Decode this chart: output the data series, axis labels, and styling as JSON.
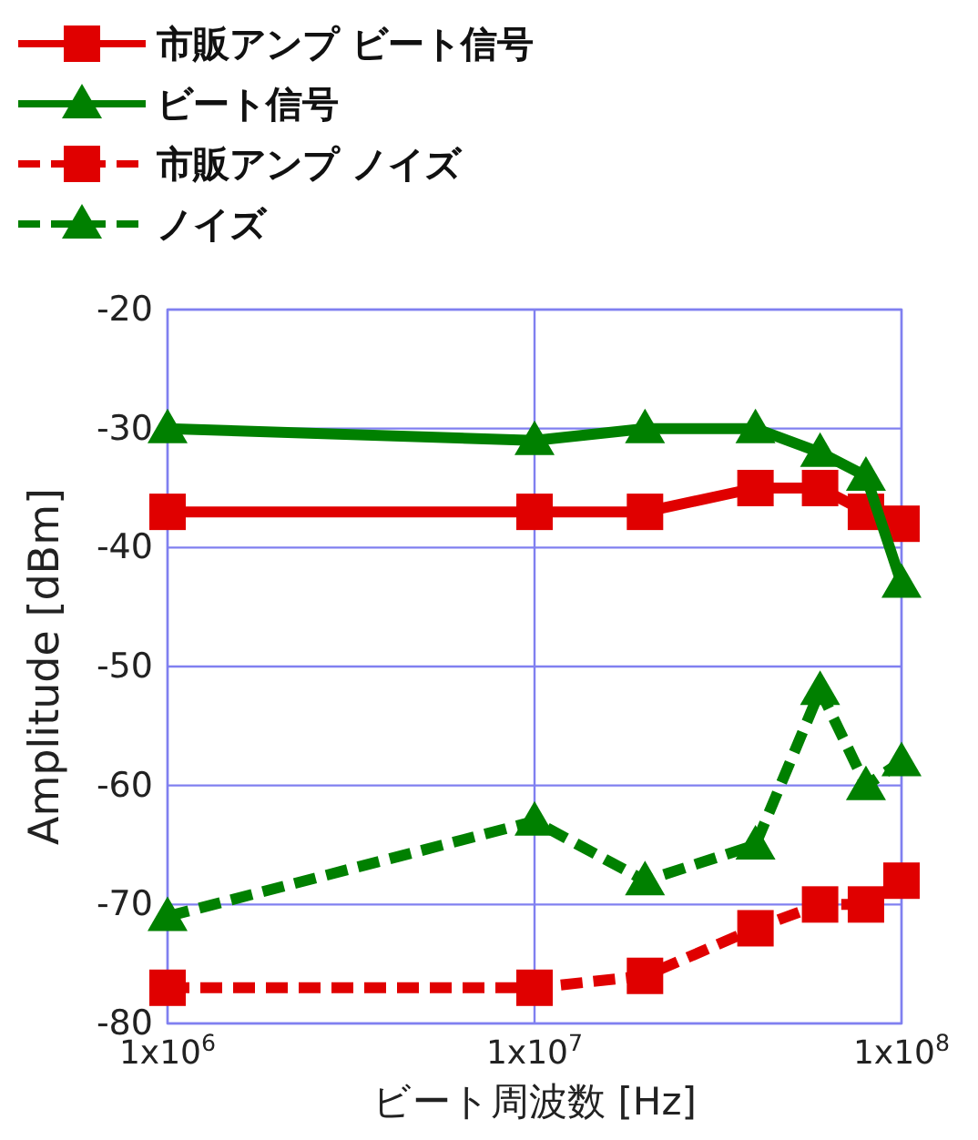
{
  "chart_data": {
    "type": "line",
    "xlabel": "ビート周波数 [Hz]",
    "ylabel": "Amplitude [dBm]",
    "log": "x",
    "grid": true,
    "legend": "top left",
    "x": [
      1000000,
      10000000,
      20000000,
      40000000,
      60000000,
      80000000,
      100000000
    ],
    "xlim": [
      1000000,
      100000000
    ],
    "xticks": [
      {
        "value": 1000000,
        "label": "1x10$^{6}$"
      },
      {
        "value": 10000000,
        "label": "1x10$^{7}$"
      },
      {
        "value": 100000000,
        "label": "1x10$^{8}$"
      }
    ],
    "ylim": [
      -80,
      -20
    ],
    "yticks": [
      -80,
      -70,
      -60,
      -50,
      -40,
      -30,
      -20
    ],
    "series": [
      {
        "name": "市販アンプ ビート信号",
        "color": "#e00000",
        "marker": "square",
        "line_style": "solid",
        "values": [
          -37,
          -37,
          -37,
          -35,
          -35,
          -37,
          -38
        ]
      },
      {
        "name": "ビート信号",
        "color": "#008000",
        "marker": "triangle",
        "line_style": "solid",
        "values": [
          -30,
          -31,
          -30,
          -30,
          -32,
          -34,
          -43
        ]
      },
      {
        "name": "市販アンプ ノイズ",
        "color": "#e00000",
        "marker": "square",
        "line_style": "dashed",
        "values": [
          -77,
          -77,
          -76,
          -72,
          -70,
          -70,
          -68
        ]
      },
      {
        "name": "ノイズ",
        "color": "#008000",
        "marker": "triangle",
        "line_style": "dashed",
        "values": [
          -71,
          -63,
          -68,
          -65,
          -52,
          -60,
          -58
        ]
      }
    ]
  }
}
